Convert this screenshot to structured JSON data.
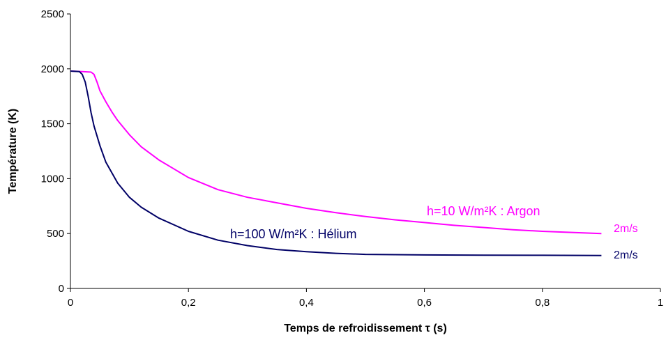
{
  "chart_data": {
    "type": "line",
    "xlabel": "Temps de refroidissement τ (s)",
    "ylabel": "Température (K)",
    "xlim": [
      0,
      1
    ],
    "ylim": [
      0,
      2500
    ],
    "x_ticks": [
      "0",
      "0,2",
      "0,4",
      "0,6",
      "0,8",
      "1"
    ],
    "y_ticks": [
      "0",
      "500",
      "1000",
      "1500",
      "2000",
      "2500"
    ],
    "grid": false,
    "series": [
      {
        "name": "h=10 W/m²K : Argon",
        "end_label": "2m/s",
        "color": "#ff00ff",
        "points": [
          [
            0,
            1980
          ],
          [
            0.02,
            1975
          ],
          [
            0.03,
            1972
          ],
          [
            0.035,
            1970
          ],
          [
            0.04,
            1950
          ],
          [
            0.045,
            1880
          ],
          [
            0.05,
            1800
          ],
          [
            0.06,
            1700
          ],
          [
            0.07,
            1610
          ],
          [
            0.08,
            1530
          ],
          [
            0.1,
            1400
          ],
          [
            0.12,
            1290
          ],
          [
            0.15,
            1170
          ],
          [
            0.2,
            1010
          ],
          [
            0.25,
            900
          ],
          [
            0.3,
            830
          ],
          [
            0.35,
            780
          ],
          [
            0.4,
            730
          ],
          [
            0.45,
            690
          ],
          [
            0.5,
            655
          ],
          [
            0.55,
            625
          ],
          [
            0.6,
            600
          ],
          [
            0.65,
            575
          ],
          [
            0.7,
            555
          ],
          [
            0.75,
            535
          ],
          [
            0.8,
            520
          ],
          [
            0.85,
            510
          ],
          [
            0.9,
            500
          ]
        ]
      },
      {
        "name": "h=100 W/m²K : Hélium",
        "end_label": "2m/s",
        "color": "#000066",
        "points": [
          [
            0,
            1980
          ],
          [
            0.015,
            1975
          ],
          [
            0.02,
            1950
          ],
          [
            0.025,
            1880
          ],
          [
            0.03,
            1750
          ],
          [
            0.035,
            1600
          ],
          [
            0.04,
            1480
          ],
          [
            0.05,
            1300
          ],
          [
            0.06,
            1150
          ],
          [
            0.08,
            960
          ],
          [
            0.1,
            830
          ],
          [
            0.12,
            740
          ],
          [
            0.15,
            640
          ],
          [
            0.2,
            520
          ],
          [
            0.25,
            440
          ],
          [
            0.3,
            390
          ],
          [
            0.35,
            355
          ],
          [
            0.4,
            335
          ],
          [
            0.45,
            320
          ],
          [
            0.5,
            310
          ],
          [
            0.6,
            305
          ],
          [
            0.7,
            303
          ],
          [
            0.8,
            302
          ],
          [
            0.9,
            300
          ]
        ]
      }
    ]
  }
}
